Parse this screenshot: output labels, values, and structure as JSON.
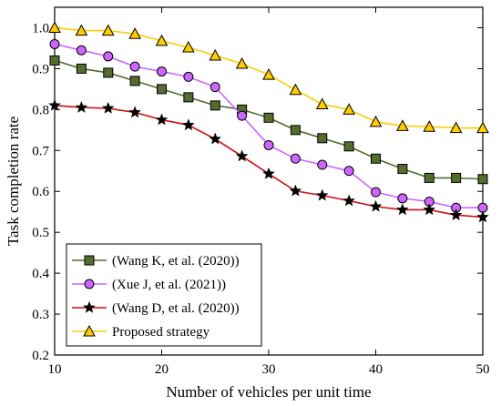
{
  "chart_data": {
    "type": "line",
    "title": "",
    "xlabel": "Number of vehicles per unit time",
    "ylabel": "Task completion rate",
    "xlim": [
      10,
      50
    ],
    "ylim": [
      0.2,
      1.05
    ],
    "xticks": [
      10,
      20,
      30,
      40,
      50
    ],
    "xtick_labels": [
      "10",
      "20",
      "30",
      "40",
      "50"
    ],
    "yticks": [
      0.2,
      0.3,
      0.4,
      0.5,
      0.6,
      0.7,
      0.8,
      0.9,
      1.0
    ],
    "ytick_labels": [
      "0.2",
      "0.3",
      "0.4",
      "0.5",
      "0.6",
      "0.7",
      "0.8",
      "0.9",
      "1.0"
    ],
    "grid": false,
    "legend_position": "bottom-left",
    "x": [
      10,
      12.5,
      15,
      17.5,
      20,
      22.5,
      25,
      27.5,
      30,
      32.5,
      35,
      37.5,
      40,
      42.5,
      45,
      47.5,
      50
    ],
    "series": [
      {
        "name": "(Wang K, et al. (2020))",
        "color": "#556b2f",
        "marker": "square",
        "marker_fill": "#556b2f",
        "values": [
          0.92,
          0.9,
          0.89,
          0.87,
          0.85,
          0.83,
          0.81,
          0.8,
          0.78,
          0.75,
          0.73,
          0.71,
          0.68,
          0.655,
          0.633,
          0.633,
          0.63
        ]
      },
      {
        "name": "(Xue J, et al. (2021))",
        "color": "#cc66ff",
        "marker": "circle",
        "marker_fill": "#cc66ff",
        "values": [
          0.96,
          0.945,
          0.93,
          0.905,
          0.893,
          0.88,
          0.855,
          0.785,
          0.713,
          0.68,
          0.665,
          0.65,
          0.598,
          0.583,
          0.575,
          0.56,
          0.56
        ]
      },
      {
        "name": "(Wang D, et al. (2020))",
        "color": "#cc1111",
        "marker": "star",
        "marker_fill": "#000000",
        "values": [
          0.81,
          0.805,
          0.803,
          0.793,
          0.775,
          0.762,
          0.728,
          0.686,
          0.643,
          0.601,
          0.59,
          0.577,
          0.563,
          0.555,
          0.555,
          0.542,
          0.537
        ]
      },
      {
        "name": "Proposed strategy",
        "color": "#ffcc00",
        "marker": "triangle",
        "marker_fill": "#ffcc00",
        "values": [
          1.0,
          0.993,
          0.993,
          0.985,
          0.968,
          0.952,
          0.932,
          0.912,
          0.885,
          0.848,
          0.813,
          0.8,
          0.77,
          0.76,
          0.758,
          0.755,
          0.755
        ]
      }
    ]
  }
}
